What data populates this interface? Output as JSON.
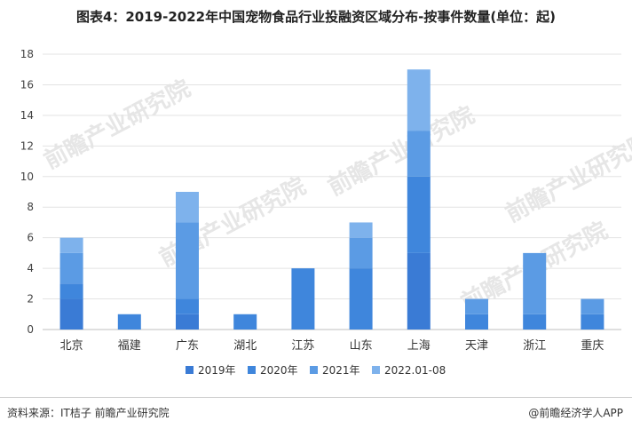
{
  "title": "图表4：2019-2022年中国宠物食品行业投融资区域分布-按事件数量(单位：起)",
  "footer": {
    "source": "资料来源：IT桔子 前瞻产业研究院",
    "brand": "@前瞻经济学人APP"
  },
  "watermark": "前瞻产业研究院",
  "colors": {
    "2019年": "#3a7bd5",
    "2020年": "#3f86dc",
    "2021年": "#5b9be4",
    "2022.01-08": "#7eb2ec",
    "grid": "#e3e3e3",
    "axis": "#bfbfbf"
  },
  "chart_data": {
    "type": "bar",
    "stacked": true,
    "categories": [
      "北京",
      "福建",
      "广东",
      "湖北",
      "江苏",
      "山东",
      "上海",
      "天津",
      "浙江",
      "重庆"
    ],
    "series": [
      {
        "name": "2019年",
        "values": [
          2,
          0,
          1,
          0,
          0,
          0,
          5,
          0,
          0,
          0
        ]
      },
      {
        "name": "2020年",
        "values": [
          1,
          1,
          1,
          1,
          4,
          4,
          5,
          1,
          1,
          1
        ]
      },
      {
        "name": "2021年",
        "values": [
          2,
          0,
          5,
          0,
          0,
          2,
          3,
          1,
          4,
          1
        ]
      },
      {
        "name": "2022.01-08",
        "values": [
          1,
          0,
          2,
          0,
          0,
          1,
          4,
          0,
          0,
          0
        ]
      }
    ],
    "ylim": [
      0,
      18
    ],
    "yticks": [
      0,
      2,
      4,
      6,
      8,
      10,
      12,
      14,
      16,
      18
    ],
    "grid": true,
    "legend_position": "bottom"
  }
}
